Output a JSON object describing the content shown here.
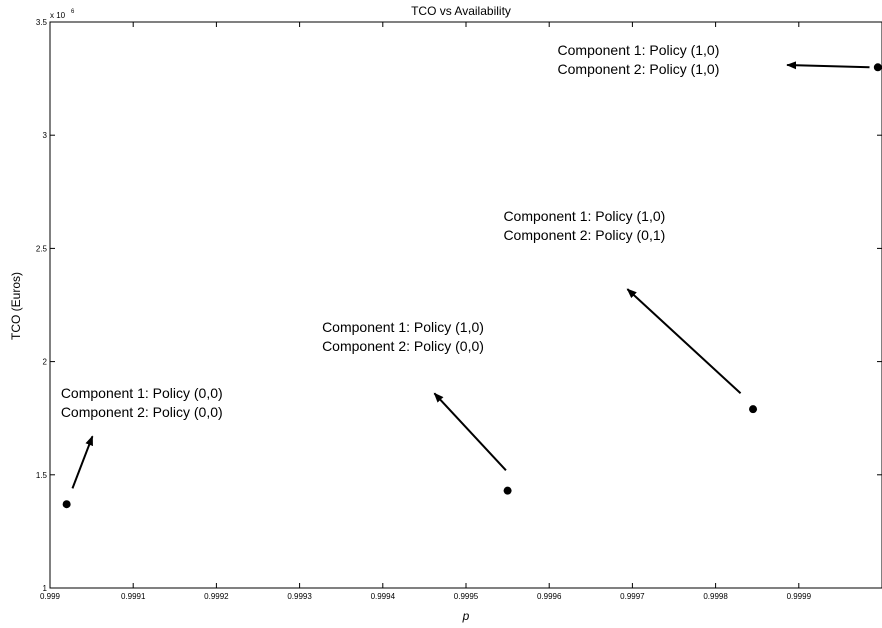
{
  "chart_data": {
    "type": "scatter",
    "title": "TCO vs Availability",
    "xlabel": "p",
    "ylabel": "TCO (Euros)",
    "xlim": [
      0.999,
      1.0
    ],
    "ylim": [
      1000000,
      3500000
    ],
    "y_exponent_label": "x 10",
    "y_exponent_power": "6",
    "x_ticks": [
      {
        "value": 0.999,
        "label": "0.999"
      },
      {
        "value": 0.9991,
        "label": "0.9991"
      },
      {
        "value": 0.9992,
        "label": "0.9992"
      },
      {
        "value": 0.9993,
        "label": "0.9993"
      },
      {
        "value": 0.9994,
        "label": "0.9994"
      },
      {
        "value": 0.9995,
        "label": "0.9995"
      },
      {
        "value": 0.9996,
        "label": "0.9996"
      },
      {
        "value": 0.9997,
        "label": "0.9997"
      },
      {
        "value": 0.9998,
        "label": "0.9998"
      },
      {
        "value": 0.9999,
        "label": "0.9999"
      }
    ],
    "y_ticks": [
      {
        "value": 1000000,
        "label": "1"
      },
      {
        "value": 1500000,
        "label": "1.5"
      },
      {
        "value": 2000000,
        "label": "2"
      },
      {
        "value": 2500000,
        "label": "2.5"
      },
      {
        "value": 3000000,
        "label": "3"
      },
      {
        "value": 3500000,
        "label": "3.5"
      }
    ],
    "grid": false,
    "points": [
      {
        "x": 0.99902,
        "y": 1370000
      },
      {
        "x": 0.99955,
        "y": 1430000
      },
      {
        "x": 0.999845,
        "y": 1790000
      },
      {
        "x": 0.999995,
        "y": 3300000
      }
    ],
    "annotations": [
      {
        "lines": [
          "Component 1: Policy (0,0)",
          "Component 2: Policy (0,0)"
        ],
        "text_x": 0.999013,
        "text_y": 1840000,
        "arrow_from": [
          0.999027,
          1440000
        ],
        "arrow_to": [
          0.999051,
          1670000
        ]
      },
      {
        "lines": [
          "Component 1: Policy (1,0)",
          "Component 2: Policy (0,0)"
        ],
        "text_x": 0.999327,
        "text_y": 2130000,
        "arrow_from": [
          0.999548,
          1520000
        ],
        "arrow_to": [
          0.999462,
          1860000
        ]
      },
      {
        "lines": [
          "Component 1: Policy (1,0)",
          "Component 2: Policy (0,1)"
        ],
        "text_x": 0.999545,
        "text_y": 2620000,
        "arrow_from": [
          0.99983,
          1860000
        ],
        "arrow_to": [
          0.999694,
          2320000
        ]
      },
      {
        "lines": [
          "Component 1: Policy (1,0)",
          "Component 2: Policy (1,0)"
        ],
        "text_x": 0.99961,
        "text_y": 3355000,
        "arrow_from": [
          0.999985,
          3300000
        ],
        "arrow_to": [
          0.999886,
          3310000
        ]
      }
    ],
    "colors": {
      "marker": "#000000",
      "axes": "#000000",
      "background": "#ffffff"
    }
  }
}
